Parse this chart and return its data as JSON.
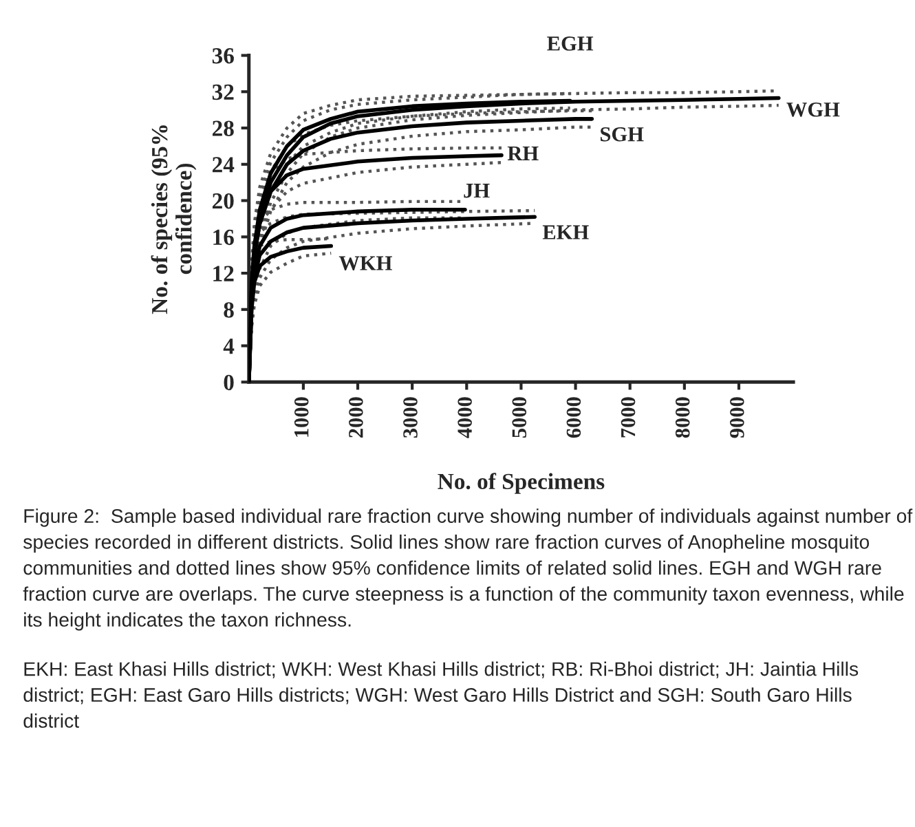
{
  "chart_data": {
    "type": "line",
    "xlabel": "No. of Specimens",
    "ylabel": "No. of species (95%\nconfidence)",
    "xlim": [
      0,
      10000
    ],
    "xticks": [
      1000,
      2000,
      3000,
      4000,
      5000,
      6000,
      7000,
      8000,
      9000
    ],
    "ylim": [
      0,
      36
    ],
    "yticks": [
      0,
      4,
      8,
      12,
      16,
      20,
      24,
      28,
      32,
      36
    ],
    "grid": false,
    "legend": false,
    "marker": "none",
    "line_style": "solid",
    "series": [
      {
        "name": "EGH",
        "color": "#000000",
        "x": [
          0,
          50,
          100,
          200,
          400,
          700,
          1000,
          1500,
          2000,
          3000,
          4000,
          5000,
          5900
        ],
        "values": [
          0,
          11,
          15,
          19,
          23,
          26,
          27.8,
          29,
          29.8,
          30.4,
          30.7,
          30.9,
          31
        ]
      },
      {
        "name": "WGH",
        "color": "#000000",
        "x": [
          0,
          50,
          100,
          200,
          400,
          700,
          1000,
          1500,
          2000,
          3000,
          4000,
          5000,
          6000,
          7000,
          8000,
          9000,
          9730
        ],
        "values": [
          0,
          10,
          14,
          18,
          22,
          25,
          27,
          28.5,
          29.3,
          30,
          30.4,
          30.7,
          30.9,
          31,
          31.1,
          31.2,
          31.3
        ]
      },
      {
        "name": "SGH",
        "color": "#000000",
        "x": [
          0,
          50,
          100,
          200,
          400,
          700,
          1000,
          1500,
          2000,
          3000,
          4000,
          5000,
          6000,
          6300
        ],
        "values": [
          0,
          10,
          14,
          17.5,
          21,
          24,
          25.5,
          26.8,
          27.5,
          28.2,
          28.6,
          28.8,
          29,
          29
        ]
      },
      {
        "name": "RH",
        "color": "#000000",
        "x": [
          0,
          50,
          100,
          200,
          400,
          700,
          1000,
          2000,
          3000,
          4000,
          4640
        ],
        "values": [
          0,
          10,
          14,
          17.5,
          21,
          22.8,
          23.5,
          24.3,
          24.7,
          24.9,
          25
        ]
      },
      {
        "name": "JH",
        "color": "#000000",
        "x": [
          0,
          50,
          100,
          200,
          400,
          700,
          1000,
          2000,
          3000,
          3970
        ],
        "values": [
          0,
          9,
          12.5,
          15,
          17,
          18,
          18.4,
          18.8,
          19,
          19
        ]
      },
      {
        "name": "EKH",
        "color": "#000000",
        "x": [
          0,
          50,
          100,
          200,
          400,
          700,
          1000,
          2000,
          3000,
          4000,
          5250
        ],
        "values": [
          0,
          8.5,
          11.5,
          14,
          15.5,
          16.5,
          17,
          17.5,
          17.8,
          18,
          18.2
        ]
      },
      {
        "name": "WKH",
        "color": "#000000",
        "x": [
          0,
          50,
          100,
          200,
          400,
          700,
          1000,
          1510
        ],
        "values": [
          0,
          8,
          11,
          12.8,
          13.8,
          14.4,
          14.8,
          15
        ]
      },
      {
        "color": "#555555",
        "line_style": "dotted",
        "x": [
          0,
          50,
          100,
          200,
          400,
          700,
          1000,
          1500,
          2000,
          3000,
          4000,
          5000,
          5900
        ],
        "values": [
          0,
          13,
          17.5,
          21.5,
          25.2,
          28,
          29.6,
          30.5,
          31.1,
          31.5,
          31.6,
          31.7,
          31.8
        ]
      },
      {
        "color": "#555555",
        "line_style": "dotted",
        "x": [
          0,
          50,
          100,
          200,
          400,
          700,
          1000,
          1500,
          2000,
          3000,
          4000,
          5000,
          5900
        ],
        "values": [
          0,
          9,
          12.5,
          16.5,
          20.8,
          24,
          26,
          27.5,
          28.5,
          29.3,
          29.8,
          30.1,
          30.2
        ]
      },
      {
        "color": "#555555",
        "line_style": "dotted",
        "x": [
          0,
          50,
          100,
          200,
          400,
          700,
          1000,
          1500,
          2000,
          3000,
          4000,
          5000,
          6000,
          7000,
          8000,
          9000,
          9730
        ],
        "values": [
          0,
          12,
          16.5,
          20.5,
          24.2,
          27,
          28.8,
          30,
          30.6,
          31.1,
          31.4,
          31.7,
          31.8,
          31.9,
          31.9,
          32,
          32.1
        ]
      },
      {
        "color": "#555555",
        "line_style": "dotted",
        "x": [
          0,
          50,
          100,
          200,
          400,
          700,
          1000,
          1500,
          2000,
          3000,
          4000,
          5000,
          6000,
          7000,
          8000,
          9000,
          9730
        ],
        "values": [
          0,
          8,
          11.5,
          15.5,
          19.8,
          23,
          25.2,
          27,
          28,
          28.9,
          29.4,
          29.7,
          30,
          30.1,
          30.3,
          30.4,
          30.5
        ]
      },
      {
        "color": "#555555",
        "line_style": "dotted",
        "x": [
          0,
          50,
          100,
          200,
          400,
          700,
          1000,
          1500,
          2000,
          3000,
          4000,
          5000,
          6000,
          6300
        ],
        "values": [
          0,
          12,
          16.5,
          20,
          23.2,
          26,
          27.3,
          28.3,
          28.8,
          29.3,
          29.6,
          29.8,
          29.9,
          29.9
        ]
      },
      {
        "color": "#555555",
        "line_style": "dotted",
        "x": [
          0,
          50,
          100,
          200,
          400,
          700,
          1000,
          1500,
          2000,
          3000,
          4000,
          5000,
          6000,
          6300
        ],
        "values": [
          0,
          8,
          11.5,
          15,
          18.8,
          22,
          23.7,
          25.3,
          26.2,
          27.1,
          27.6,
          27.8,
          28.1,
          28.1
        ]
      },
      {
        "color": "#555555",
        "line_style": "dotted",
        "x": [
          0,
          50,
          100,
          200,
          400,
          700,
          1000,
          2000,
          3000,
          4000,
          4640
        ],
        "values": [
          0,
          12,
          16.5,
          20,
          23,
          24.6,
          25.1,
          25.5,
          25.7,
          25.8,
          25.8
        ]
      },
      {
        "color": "#555555",
        "line_style": "dotted",
        "x": [
          0,
          50,
          100,
          200,
          400,
          700,
          1000,
          2000,
          3000,
          4000,
          4640
        ],
        "values": [
          0,
          8,
          11.5,
          15,
          19,
          21,
          21.9,
          23.1,
          23.7,
          24,
          24.2
        ]
      },
      {
        "color": "#555555",
        "line_style": "dotted",
        "x": [
          0,
          50,
          100,
          200,
          400,
          700,
          1000,
          2000,
          3000,
          3970
        ],
        "values": [
          0,
          11,
          15,
          17.5,
          19,
          19.6,
          19.8,
          19.8,
          19.9,
          19.9
        ]
      },
      {
        "color": "#555555",
        "line_style": "dotted",
        "x": [
          0,
          50,
          100,
          200,
          400,
          700,
          1000,
          2000,
          3000,
          3970
        ],
        "values": [
          0,
          7,
          10,
          12.5,
          15,
          16.4,
          17,
          17.8,
          18.1,
          18.1
        ]
      },
      {
        "color": "#555555",
        "line_style": "dotted",
        "x": [
          0,
          50,
          100,
          200,
          400,
          700,
          1000,
          2000,
          3000,
          4000,
          5250
        ],
        "values": [
          0,
          10.5,
          14,
          16.5,
          17.5,
          18.2,
          18.5,
          18.6,
          18.7,
          18.8,
          18.9
        ]
      },
      {
        "color": "#555555",
        "line_style": "dotted",
        "x": [
          0,
          50,
          100,
          200,
          400,
          700,
          1000,
          2000,
          3000,
          4000,
          5250
        ],
        "values": [
          0,
          6.5,
          9,
          11.5,
          13.5,
          14.8,
          15.5,
          16.4,
          16.9,
          17.2,
          17.5
        ]
      },
      {
        "color": "#555555",
        "line_style": "dotted",
        "x": [
          0,
          50,
          100,
          200,
          400,
          700,
          1000,
          1510
        ],
        "values": [
          0,
          10,
          13.5,
          15,
          15.5,
          15.7,
          15.7,
          15.8
        ]
      },
      {
        "color": "#555555",
        "line_style": "dotted",
        "x": [
          0,
          50,
          100,
          200,
          400,
          700,
          1000,
          1510
        ],
        "values": [
          0,
          6,
          8.5,
          10.6,
          12.1,
          13.1,
          13.9,
          14.2
        ]
      }
    ],
    "annotations": [
      "Figure 2:  Sample based individual rare fraction curve showing number of individuals against number of species recorded in different districts. Solid lines show rare fraction curves of Anopheline mosquito communities and dotted lines show 95% confidence limits of related solid lines. EGH and WGH rare fraction curve are overlaps. The curve steepness is a function of the community taxon evenness, while its height indicates the taxon richness.",
      "EKH: East Khasi Hills district; WKH: West Khasi Hills district; RB: Ri-Bhoi district; JH: Jaintia Hills district; EGH: East Garo Hills districts; WGH: West Garo Hills District and SGH: South Garo Hills district"
    ]
  }
}
